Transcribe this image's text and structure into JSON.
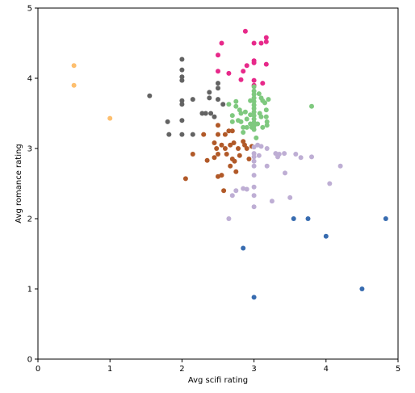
{
  "chart_data": {
    "type": "scatter",
    "title": "",
    "xlabel": "Avg scifi rating",
    "ylabel": "Avg romance rating",
    "xlim": [
      0,
      5
    ],
    "ylim": [
      0,
      5
    ],
    "xticks": [
      "0",
      "1",
      "2",
      "3",
      "4",
      "5"
    ],
    "yticks": [
      "0",
      "1",
      "2",
      "3",
      "4",
      "5"
    ],
    "grid": false,
    "legend": "none",
    "series": [
      {
        "color": "#fdbf6f",
        "points": [
          [
            0.5,
            4.18
          ],
          [
            0.5,
            3.9
          ],
          [
            1.0,
            3.43
          ]
        ]
      },
      {
        "color": "#636363",
        "points": [
          [
            1.55,
            3.75
          ],
          [
            1.8,
            3.38
          ],
          [
            1.82,
            3.2
          ],
          [
            2.0,
            4.27
          ],
          [
            2.0,
            4.12
          ],
          [
            2.0,
            4.02
          ],
          [
            2.0,
            3.97
          ],
          [
            2.0,
            3.68
          ],
          [
            2.0,
            3.63
          ],
          [
            2.0,
            3.4
          ],
          [
            2.0,
            3.2
          ],
          [
            2.15,
            3.7
          ],
          [
            2.15,
            3.2
          ],
          [
            2.28,
            3.5
          ],
          [
            2.33,
            3.5
          ],
          [
            2.38,
            3.8
          ],
          [
            2.38,
            3.72
          ],
          [
            2.4,
            3.5
          ],
          [
            2.45,
            3.45
          ],
          [
            2.5,
            3.93
          ],
          [
            2.5,
            3.86
          ],
          [
            2.5,
            3.7
          ],
          [
            2.57,
            3.63
          ]
        ]
      },
      {
        "color": "#e7298a",
        "points": [
          [
            2.5,
            4.33
          ],
          [
            2.5,
            4.1
          ],
          [
            2.55,
            4.5
          ],
          [
            2.65,
            4.07
          ],
          [
            2.82,
            3.98
          ],
          [
            2.85,
            4.1
          ],
          [
            2.88,
            4.67
          ],
          [
            2.9,
            4.18
          ],
          [
            3.0,
            4.5
          ],
          [
            3.0,
            4.25
          ],
          [
            3.0,
            4.22
          ],
          [
            3.0,
            3.97
          ],
          [
            3.0,
            3.9
          ],
          [
            3.1,
            4.5
          ],
          [
            3.12,
            3.93
          ],
          [
            3.17,
            4.58
          ],
          [
            3.17,
            4.52
          ],
          [
            3.17,
            4.2
          ]
        ]
      },
      {
        "color": "#7fc97f",
        "points": [
          [
            2.65,
            3.63
          ],
          [
            2.7,
            3.47
          ],
          [
            2.7,
            3.38
          ],
          [
            2.75,
            3.67
          ],
          [
            2.75,
            3.6
          ],
          [
            2.78,
            3.4
          ],
          [
            2.8,
            3.55
          ],
          [
            2.82,
            3.5
          ],
          [
            2.82,
            3.38
          ],
          [
            2.85,
            3.3
          ],
          [
            2.85,
            3.23
          ],
          [
            2.88,
            3.52
          ],
          [
            2.9,
            3.42
          ],
          [
            2.9,
            3.3
          ],
          [
            2.95,
            3.68
          ],
          [
            2.95,
            3.48
          ],
          [
            2.95,
            3.35
          ],
          [
            2.97,
            3.3
          ],
          [
            3.0,
            3.88
          ],
          [
            3.0,
            3.82
          ],
          [
            3.0,
            3.77
          ],
          [
            3.0,
            3.72
          ],
          [
            3.0,
            3.67
          ],
          [
            3.0,
            3.62
          ],
          [
            3.0,
            3.57
          ],
          [
            3.0,
            3.52
          ],
          [
            3.0,
            3.47
          ],
          [
            3.0,
            3.42
          ],
          [
            3.0,
            3.37
          ],
          [
            3.0,
            3.32
          ],
          [
            3.0,
            3.27
          ],
          [
            3.03,
            3.15
          ],
          [
            3.05,
            3.35
          ],
          [
            3.07,
            3.78
          ],
          [
            3.08,
            3.5
          ],
          [
            3.1,
            3.72
          ],
          [
            3.1,
            3.45
          ],
          [
            3.12,
            3.68
          ],
          [
            3.12,
            3.3
          ],
          [
            3.15,
            3.65
          ],
          [
            3.17,
            3.55
          ],
          [
            3.17,
            3.45
          ],
          [
            3.18,
            3.38
          ],
          [
            3.18,
            3.33
          ],
          [
            3.2,
            3.7
          ],
          [
            3.8,
            3.6
          ]
        ]
      },
      {
        "color": "#b15928",
        "points": [
          [
            2.05,
            2.57
          ],
          [
            2.15,
            2.92
          ],
          [
            2.3,
            3.2
          ],
          [
            2.35,
            2.83
          ],
          [
            2.45,
            3.08
          ],
          [
            2.45,
            2.87
          ],
          [
            2.48,
            3.0
          ],
          [
            2.5,
            3.33
          ],
          [
            2.5,
            3.2
          ],
          [
            2.5,
            2.92
          ],
          [
            2.5,
            2.6
          ],
          [
            2.55,
            3.05
          ],
          [
            2.55,
            2.62
          ],
          [
            2.58,
            2.4
          ],
          [
            2.6,
            3.2
          ],
          [
            2.6,
            3.0
          ],
          [
            2.62,
            2.92
          ],
          [
            2.65,
            3.25
          ],
          [
            2.67,
            3.05
          ],
          [
            2.67,
            2.75
          ],
          [
            2.7,
            3.25
          ],
          [
            2.7,
            2.85
          ],
          [
            2.72,
            3.08
          ],
          [
            2.73,
            2.82
          ],
          [
            2.75,
            2.67
          ],
          [
            2.78,
            3.0
          ],
          [
            2.8,
            2.9
          ],
          [
            2.85,
            3.1
          ],
          [
            2.87,
            3.05
          ],
          [
            2.9,
            3.0
          ],
          [
            2.93,
            2.85
          ],
          [
            2.97,
            3.03
          ]
        ]
      },
      {
        "color": "#beaed4",
        "points": [
          [
            2.65,
            2.0
          ],
          [
            2.7,
            2.33
          ],
          [
            2.75,
            2.4
          ],
          [
            2.85,
            2.43
          ],
          [
            2.9,
            2.42
          ],
          [
            3.0,
            3.02
          ],
          [
            3.0,
            2.93
          ],
          [
            3.0,
            2.88
          ],
          [
            3.0,
            2.82
          ],
          [
            3.0,
            2.75
          ],
          [
            3.0,
            2.62
          ],
          [
            3.0,
            2.45
          ],
          [
            3.0,
            2.33
          ],
          [
            3.0,
            2.17
          ],
          [
            3.05,
            3.05
          ],
          [
            3.07,
            2.9
          ],
          [
            3.1,
            3.03
          ],
          [
            3.18,
            3.0
          ],
          [
            3.18,
            2.75
          ],
          [
            3.25,
            2.25
          ],
          [
            3.3,
            2.93
          ],
          [
            3.33,
            2.88
          ],
          [
            3.35,
            2.92
          ],
          [
            3.42,
            2.93
          ],
          [
            3.43,
            2.65
          ],
          [
            3.5,
            2.3
          ],
          [
            3.58,
            2.92
          ],
          [
            3.65,
            2.87
          ],
          [
            3.8,
            2.88
          ],
          [
            4.05,
            2.5
          ],
          [
            4.2,
            2.75
          ]
        ]
      },
      {
        "color": "#386cb0",
        "points": [
          [
            2.85,
            1.58
          ],
          [
            3.0,
            0.88
          ],
          [
            3.55,
            2.0
          ],
          [
            3.75,
            2.0
          ],
          [
            4.0,
            1.75
          ],
          [
            4.5,
            1.0
          ],
          [
            4.83,
            2.0
          ]
        ]
      }
    ]
  }
}
